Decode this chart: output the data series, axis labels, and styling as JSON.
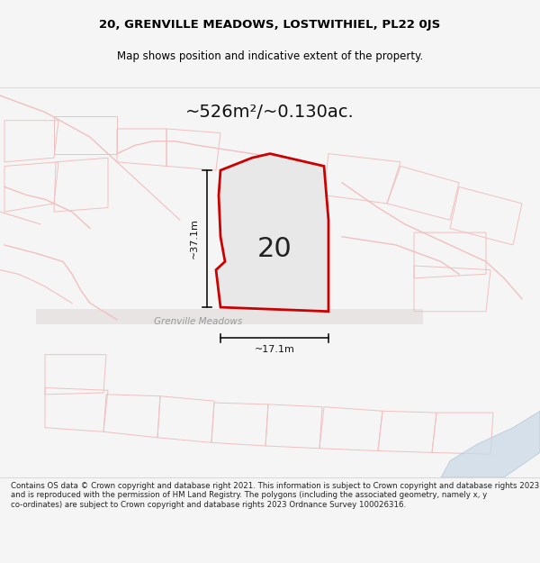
{
  "title_line1": "20, GRENVILLE MEADOWS, LOSTWITHIEL, PL22 0JS",
  "title_line2": "Map shows position and indicative extent of the property.",
  "area_text": "~526m²/~0.130ac.",
  "label_number": "20",
  "dim_horizontal": "~17.1m",
  "dim_vertical": "~37.1m",
  "road_label": "Grenville Meadows",
  "footer_text": "Contains OS data © Crown copyright and database right 2021. This information is subject to Crown copyright and database rights 2023 and is reproduced with the permission of HM Land Registry. The polygons (including the associated geometry, namely x, y co-ordinates) are subject to Crown copyright and database rights 2023 Ordnance Survey 100026316.",
  "bg_color": "#f5f5f5",
  "map_bg": "#f0eeee",
  "plot_color": "#e8e8e8",
  "plot_border_color": "#cc0000",
  "road_color": "#d0d0d0",
  "dim_line_color": "#111111",
  "road_line_color": "#f0c0c0",
  "water_color": "#c8d8e8"
}
